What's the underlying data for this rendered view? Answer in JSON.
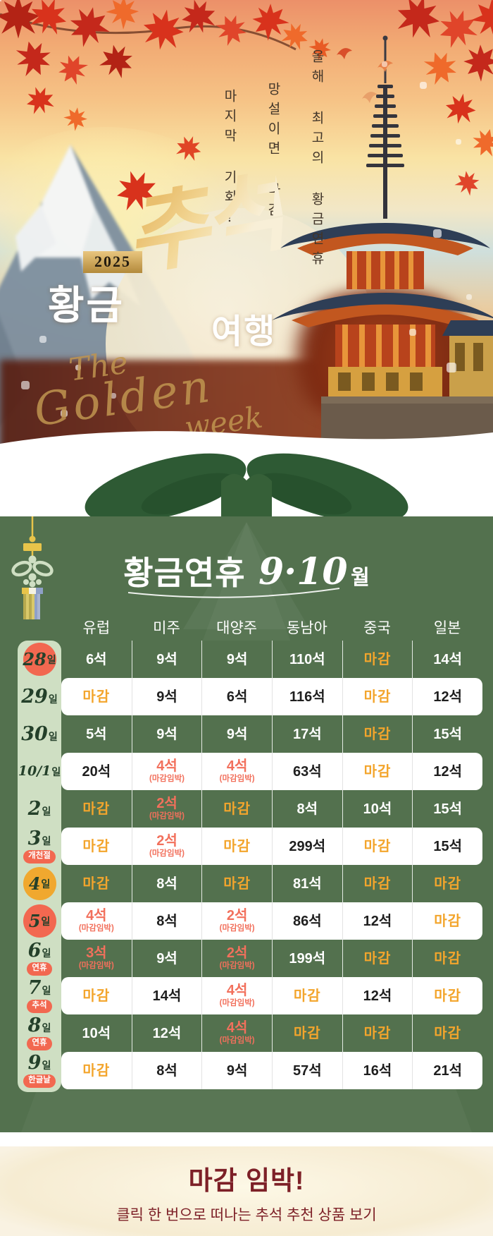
{
  "hero": {
    "vertical_lines": [
      "올해 최고의 황금연휴",
      "망설이면 마감",
      "마지막 기회!"
    ],
    "year_badge": "2025",
    "title_left": "황금",
    "title_script": "추석",
    "title_right": "여행",
    "script_words": [
      "The",
      "Golden",
      "week"
    ]
  },
  "table_section": {
    "title_main": "황금연휴",
    "title_months": "9·10",
    "title_month_suffix": "월",
    "day_suffix": "일",
    "urgent_label": "(마감임박)",
    "columns": [
      "유럽",
      "미주",
      "대양주",
      "동남아",
      "중국",
      "일본"
    ],
    "rows": [
      {
        "date": "28",
        "marker": "red",
        "tag": null,
        "bg": "green",
        "cells": [
          {
            "v": "6석",
            "k": "open"
          },
          {
            "v": "9석",
            "k": "open"
          },
          {
            "v": "9석",
            "k": "open"
          },
          {
            "v": "110석",
            "k": "open"
          },
          {
            "v": "마감",
            "k": "closed"
          },
          {
            "v": "14석",
            "k": "open"
          }
        ]
      },
      {
        "date": "29",
        "marker": null,
        "tag": null,
        "bg": "white",
        "cells": [
          {
            "v": "마감",
            "k": "closed"
          },
          {
            "v": "9석",
            "k": "open"
          },
          {
            "v": "6석",
            "k": "open"
          },
          {
            "v": "116석",
            "k": "open"
          },
          {
            "v": "마감",
            "k": "closed"
          },
          {
            "v": "12석",
            "k": "open"
          }
        ]
      },
      {
        "date": "30",
        "marker": null,
        "tag": null,
        "bg": "green",
        "cells": [
          {
            "v": "5석",
            "k": "open"
          },
          {
            "v": "9석",
            "k": "open"
          },
          {
            "v": "9석",
            "k": "open"
          },
          {
            "v": "17석",
            "k": "open"
          },
          {
            "v": "마감",
            "k": "closed"
          },
          {
            "v": "15석",
            "k": "open"
          }
        ]
      },
      {
        "date": "10/1",
        "marker": null,
        "tag": null,
        "bg": "white",
        "cells": [
          {
            "v": "20석",
            "k": "open"
          },
          {
            "v": "4석",
            "k": "urgent"
          },
          {
            "v": "4석",
            "k": "urgent"
          },
          {
            "v": "63석",
            "k": "open"
          },
          {
            "v": "마감",
            "k": "closed"
          },
          {
            "v": "12석",
            "k": "open"
          }
        ]
      },
      {
        "date": "2",
        "marker": null,
        "tag": null,
        "bg": "green",
        "cells": [
          {
            "v": "마감",
            "k": "closed"
          },
          {
            "v": "2석",
            "k": "urgent"
          },
          {
            "v": "마감",
            "k": "closed"
          },
          {
            "v": "8석",
            "k": "open"
          },
          {
            "v": "10석",
            "k": "open"
          },
          {
            "v": "15석",
            "k": "open"
          }
        ]
      },
      {
        "date": "3",
        "marker": null,
        "tag": "개천절",
        "bg": "white",
        "cells": [
          {
            "v": "마감",
            "k": "closed"
          },
          {
            "v": "2석",
            "k": "urgent"
          },
          {
            "v": "마감",
            "k": "closed"
          },
          {
            "v": "299석",
            "k": "open"
          },
          {
            "v": "마감",
            "k": "closed"
          },
          {
            "v": "15석",
            "k": "open"
          }
        ]
      },
      {
        "date": "4",
        "marker": "gold",
        "tag": null,
        "bg": "green",
        "cells": [
          {
            "v": "마감",
            "k": "closed"
          },
          {
            "v": "8석",
            "k": "open"
          },
          {
            "v": "마감",
            "k": "closed"
          },
          {
            "v": "81석",
            "k": "open"
          },
          {
            "v": "마감",
            "k": "closed"
          },
          {
            "v": "마감",
            "k": "closed"
          }
        ]
      },
      {
        "date": "5",
        "marker": "red",
        "tag": null,
        "bg": "white",
        "cells": [
          {
            "v": "4석",
            "k": "urgent"
          },
          {
            "v": "8석",
            "k": "open"
          },
          {
            "v": "2석",
            "k": "urgent"
          },
          {
            "v": "86석",
            "k": "open"
          },
          {
            "v": "12석",
            "k": "open"
          },
          {
            "v": "마감",
            "k": "closed"
          }
        ]
      },
      {
        "date": "6",
        "marker": null,
        "tag": "연휴",
        "bg": "green",
        "cells": [
          {
            "v": "3석",
            "k": "urgent"
          },
          {
            "v": "9석",
            "k": "open"
          },
          {
            "v": "2석",
            "k": "urgent"
          },
          {
            "v": "199석",
            "k": "open"
          },
          {
            "v": "마감",
            "k": "closed"
          },
          {
            "v": "마감",
            "k": "closed"
          }
        ]
      },
      {
        "date": "7",
        "marker": null,
        "tag": "추석",
        "bg": "white",
        "cells": [
          {
            "v": "마감",
            "k": "closed"
          },
          {
            "v": "14석",
            "k": "open"
          },
          {
            "v": "4석",
            "k": "urgent"
          },
          {
            "v": "마감",
            "k": "closed"
          },
          {
            "v": "12석",
            "k": "open"
          },
          {
            "v": "마감",
            "k": "closed"
          }
        ]
      },
      {
        "date": "8",
        "marker": null,
        "tag": "연휴",
        "bg": "green",
        "cells": [
          {
            "v": "10석",
            "k": "open"
          },
          {
            "v": "12석",
            "k": "open"
          },
          {
            "v": "4석",
            "k": "urgent"
          },
          {
            "v": "마감",
            "k": "closed"
          },
          {
            "v": "마감",
            "k": "closed"
          },
          {
            "v": "마감",
            "k": "closed"
          }
        ]
      },
      {
        "date": "9",
        "marker": null,
        "tag": "한글날",
        "bg": "white",
        "cells": [
          {
            "v": "마감",
            "k": "closed"
          },
          {
            "v": "8석",
            "k": "open"
          },
          {
            "v": "9석",
            "k": "open"
          },
          {
            "v": "57석",
            "k": "open"
          },
          {
            "v": "16석",
            "k": "open"
          },
          {
            "v": "21석",
            "k": "open"
          }
        ]
      }
    ]
  },
  "footer": {
    "headline": "마감 임박!",
    "sub": "클릭 한 번으로 떠나는 추석 추천 상품 보기"
  },
  "colors": {
    "green_box": "#53714e",
    "ribbon_green": "#2e5a34",
    "mint_rail": "#cfdfc3",
    "date_text": "#24402a",
    "coral": "#f26850",
    "gold_circle": "#f0a82f",
    "closed_gold": "#f3a52c",
    "urgent_red": "#f2705c",
    "footer_maroon": "#7d2027",
    "footer_cream": "#f6ecd2"
  }
}
